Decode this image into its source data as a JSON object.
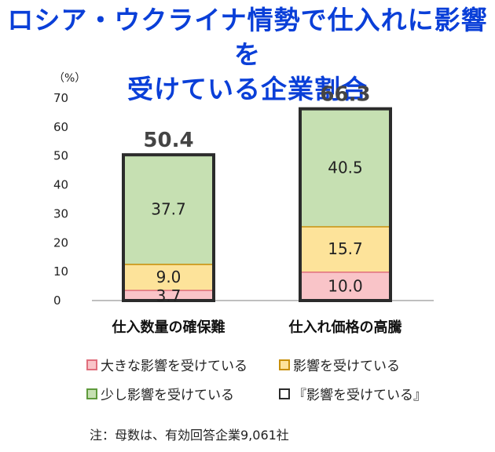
{
  "title_line1": "ロシア・ウクライナ情勢で仕入れに影響を",
  "title_line2": "受けている企業割合",
  "note": "注：母数は、有効回答企業9,061社",
  "colors": {
    "large": {
      "fill": "#f9c4c8",
      "edge": "#e06e7c"
    },
    "affected": {
      "fill": "#fde39a",
      "edge": "#c8900a"
    },
    "slight": {
      "fill": "#c6e0b2",
      "edge": "#5f9a3c"
    },
    "total": {
      "fill": "#ffffff",
      "edge": "#2b2b2b"
    }
  },
  "chart_data": {
    "type": "bar",
    "stacked": true,
    "unit_label": "（%）",
    "ylim": [
      0,
      70
    ],
    "yticks": [
      0,
      10,
      20,
      30,
      40,
      50,
      60,
      70
    ],
    "categories": [
      "仕入数量の確保難",
      "仕入れ価格の高騰"
    ],
    "series": [
      {
        "name": "大きな影響を受けている",
        "key": "large",
        "values": [
          3.7,
          10.0
        ],
        "labels": [
          "3.7",
          "10.0"
        ]
      },
      {
        "name": "影響を受けている",
        "key": "affected",
        "values": [
          9.0,
          15.7
        ],
        "labels": [
          "9.0",
          "15.7"
        ]
      },
      {
        "name": "少し影響を受けている",
        "key": "slight",
        "values": [
          37.7,
          40.5
        ],
        "labels": [
          "37.7",
          "40.5"
        ]
      }
    ],
    "totals": {
      "name": "『影響を受けている』",
      "values": [
        50.4,
        66.3
      ],
      "labels": [
        "50.4",
        "66.3"
      ]
    },
    "legend": [
      {
        "key": "large",
        "label": "大きな影響を受けている"
      },
      {
        "key": "affected",
        "label": "影響を受けている"
      },
      {
        "key": "slight",
        "label": "少し影響を受けている"
      },
      {
        "key": "total",
        "label": "『影響を受けている』"
      }
    ]
  }
}
